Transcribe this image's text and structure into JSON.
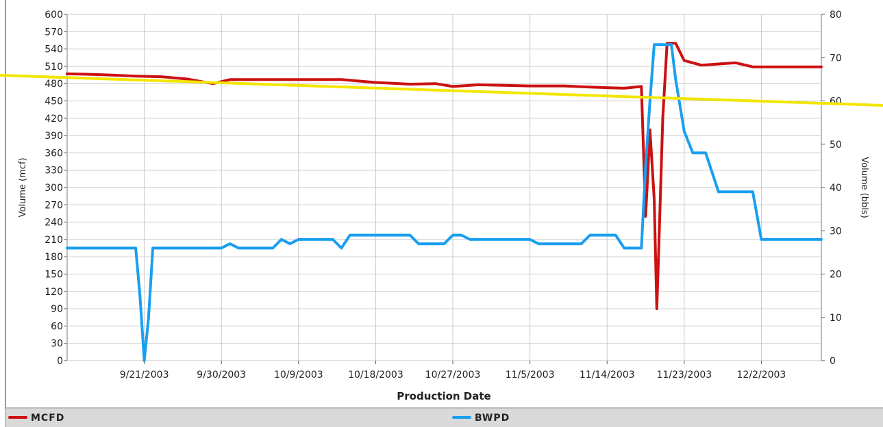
{
  "chart_data": {
    "type": "line",
    "xlabel": "Production Date",
    "ylabel_left": "Volume (mcf)",
    "ylabel_right": "Volume (bbls)",
    "x_range": [
      "2003-09-12",
      "2003-12-09"
    ],
    "x_ticks": [
      "9/21/2003",
      "9/30/2003",
      "10/9/2003",
      "10/18/2003",
      "10/27/2003",
      "11/5/2003",
      "11/14/2003",
      "11/23/2003",
      "12/2/2003"
    ],
    "x_tick_dates": [
      "2003-09-21",
      "2003-09-30",
      "2003-10-09",
      "2003-10-18",
      "2003-10-27",
      "2003-11-05",
      "2003-11-14",
      "2003-11-23",
      "2003-12-02"
    ],
    "y_left": {
      "range": [
        0,
        600
      ],
      "step": 30
    },
    "y_right": {
      "range": [
        0,
        80
      ],
      "step": 10
    },
    "grid": true,
    "legend_position": "bottom",
    "series": [
      {
        "name": "MCFD",
        "axis": "left",
        "color": "#cc1111",
        "points": [
          [
            "2003-09-12",
            497
          ],
          [
            "2003-09-15",
            496
          ],
          [
            "2003-09-17",
            495
          ],
          [
            "2003-09-20",
            493
          ],
          [
            "2003-09-23",
            492
          ],
          [
            "2003-09-26",
            488
          ],
          [
            "2003-09-29",
            480
          ],
          [
            "2003-10-01",
            487
          ],
          [
            "2003-10-05",
            487
          ],
          [
            "2003-10-09",
            487
          ],
          [
            "2003-10-14",
            487
          ],
          [
            "2003-10-18",
            482
          ],
          [
            "2003-10-22",
            479
          ],
          [
            "2003-10-25",
            480
          ],
          [
            "2003-10-27",
            475
          ],
          [
            "2003-10-30",
            478
          ],
          [
            "2003-11-02",
            477
          ],
          [
            "2003-11-05",
            476
          ],
          [
            "2003-11-09",
            476
          ],
          [
            "2003-11-12",
            474
          ],
          [
            "2003-11-16",
            472
          ],
          [
            "2003-11-18",
            475
          ],
          [
            "2003-11-18.5",
            250
          ],
          [
            "2003-11-19",
            400
          ],
          [
            "2003-11-19.5",
            280
          ],
          [
            "2003-11-19.8",
            90
          ],
          [
            "2003-11-20",
            180
          ],
          [
            "2003-11-20.5",
            420
          ],
          [
            "2003-11-21",
            550
          ],
          [
            "2003-11-22",
            550
          ],
          [
            "2003-11-23",
            520
          ],
          [
            "2003-11-25",
            512
          ],
          [
            "2003-11-27",
            514
          ],
          [
            "2003-11-29",
            516
          ],
          [
            "2003-12-01",
            509
          ],
          [
            "2003-12-05",
            509
          ],
          [
            "2003-12-09",
            509
          ]
        ]
      },
      {
        "name": "BWPD",
        "axis": "right",
        "color": "#1a9fef",
        "points": [
          [
            "2003-09-12",
            26
          ],
          [
            "2003-09-20",
            26
          ],
          [
            "2003-09-20.5",
            15
          ],
          [
            "2003-09-21",
            0
          ],
          [
            "2003-09-21.5",
            10
          ],
          [
            "2003-09-22",
            26
          ],
          [
            "2003-09-30",
            26
          ],
          [
            "2003-10-01",
            27
          ],
          [
            "2003-10-02",
            26
          ],
          [
            "2003-10-06",
            26
          ],
          [
            "2003-10-07",
            28
          ],
          [
            "2003-10-08",
            27
          ],
          [
            "2003-10-09",
            28
          ],
          [
            "2003-10-13",
            28
          ],
          [
            "2003-10-14",
            26
          ],
          [
            "2003-10-15",
            29
          ],
          [
            "2003-10-22",
            29
          ],
          [
            "2003-10-23",
            27
          ],
          [
            "2003-10-26",
            27
          ],
          [
            "2003-10-27",
            29
          ],
          [
            "2003-10-28",
            29
          ],
          [
            "2003-10-29",
            28
          ],
          [
            "2003-11-04",
            28
          ],
          [
            "2003-11-05",
            28
          ],
          [
            "2003-11-06",
            27
          ],
          [
            "2003-11-11",
            27
          ],
          [
            "2003-11-12",
            29
          ],
          [
            "2003-11-15",
            29
          ],
          [
            "2003-11-16",
            26
          ],
          [
            "2003-11-18",
            26
          ],
          [
            "2003-11-18.5",
            45
          ],
          [
            "2003-11-19",
            60
          ],
          [
            "2003-11-19.5",
            73
          ],
          [
            "2003-11-20.5",
            73
          ],
          [
            "2003-11-21.5",
            73
          ],
          [
            "2003-11-22",
            65
          ],
          [
            "2003-11-23",
            53
          ],
          [
            "2003-11-24",
            48
          ],
          [
            "2003-11-25.5",
            48
          ],
          [
            "2003-11-27",
            39
          ],
          [
            "2003-12-01",
            39
          ],
          [
            "2003-12-02",
            28
          ],
          [
            "2003-12-09",
            28
          ]
        ]
      }
    ]
  },
  "legend": [
    {
      "label": "MCFD",
      "color": "#cc1111"
    },
    {
      "label": "BWPD",
      "color": "#1a9fef"
    }
  ]
}
